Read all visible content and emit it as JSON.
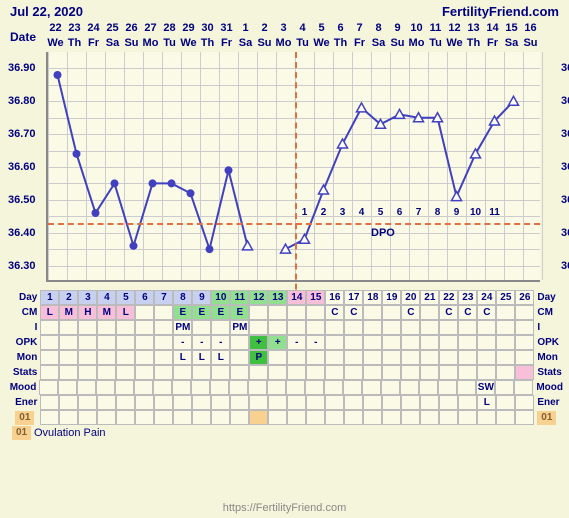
{
  "header": {
    "date": "Jul 22, 2020",
    "site": "FertilityFriend.com"
  },
  "footer": "https://FertilityFriend.com",
  "date_label": "Date",
  "chart": {
    "dates": [
      22,
      23,
      24,
      25,
      26,
      27,
      28,
      29,
      30,
      31,
      1,
      2,
      3,
      4,
      5,
      6,
      7,
      8,
      9,
      10,
      11,
      12,
      13,
      14,
      15,
      16
    ],
    "dow": [
      "We",
      "Th",
      "Fr",
      "Sa",
      "Su",
      "Mo",
      "Tu",
      "We",
      "Th",
      "Fr",
      "Sa",
      "Su",
      "Mo",
      "Tu",
      "We",
      "Th",
      "Fr",
      "Sa",
      "Su",
      "Mo",
      "Tu",
      "We",
      "Th",
      "Fr",
      "Sa",
      "Su"
    ],
    "ymin": 36.25,
    "ymax": 36.95,
    "yticks": [
      36.3,
      36.4,
      36.5,
      36.6,
      36.7,
      36.8,
      36.9
    ],
    "fine_yticks": [
      36.3,
      36.35,
      36.4,
      36.45,
      36.5,
      36.55,
      36.6,
      36.65,
      36.7,
      36.75,
      36.8,
      36.85,
      36.9
    ],
    "coverline": 36.43,
    "ov_day_index": 12,
    "temps": [
      36.88,
      36.64,
      36.46,
      36.55,
      36.36,
      36.55,
      36.55,
      36.52,
      36.35,
      36.59,
      36.36,
      null,
      36.35,
      36.38,
      36.53,
      36.67,
      36.78,
      36.73,
      36.76,
      36.75,
      36.75,
      36.51,
      36.64,
      36.74,
      36.8,
      null
    ],
    "marker_solid_until": 9,
    "dpo_label": "DPO",
    "dpo_nums": [
      1,
      2,
      3,
      4,
      5,
      6,
      7,
      8,
      9,
      10,
      11
    ],
    "line_color": "#4040c0",
    "grid_color": "#cccccc"
  },
  "rows": {
    "Day": {
      "cells": [
        "1",
        "2",
        "3",
        "4",
        "5",
        "6",
        "7",
        "8",
        "9",
        "10",
        "11",
        "12",
        "13",
        "14",
        "15",
        "16",
        "17",
        "18",
        "19",
        "20",
        "21",
        "22",
        "23",
        "24",
        "25",
        "26"
      ],
      "bg": [
        "blue",
        "blue",
        "blue",
        "blue",
        "blue",
        "blue",
        "blue",
        "blue",
        "blue",
        "green",
        "green",
        "green",
        "green",
        "pink",
        "pink",
        "",
        "",
        "",
        "",
        "",
        "",
        "",
        "",
        "",
        "",
        ""
      ]
    },
    "CM": {
      "cells": [
        "L",
        "M",
        "H",
        "M",
        "L",
        "",
        "",
        "E",
        "E",
        "E",
        "E",
        "",
        "",
        "",
        "",
        "C",
        "C",
        "",
        "",
        "C",
        "",
        "C",
        "C",
        "C",
        "",
        ""
      ],
      "bg": [
        "pink",
        "pink",
        "pink",
        "pink",
        "pink",
        "",
        "",
        "green",
        "green",
        "green",
        "green",
        "",
        "",
        "",
        "",
        "",
        "",
        "",
        "",
        "",
        "",
        "",
        "",
        "",
        "",
        ""
      ]
    },
    "I": {
      "cells": [
        "",
        "",
        "",
        "",
        "",
        "",
        "",
        "PM",
        "",
        "",
        "PM",
        "",
        "",
        "",
        "",
        "",
        "",
        "",
        "",
        "",
        "",
        "",
        "",
        "",
        "",
        ""
      ]
    },
    "OPK": {
      "cells": [
        "",
        "",
        "",
        "",
        "",
        "",
        "",
        "-",
        "-",
        "-",
        "",
        "+",
        "+",
        "-",
        "-",
        "",
        "",
        "",
        "",
        "",
        "",
        "",
        "",
        "",
        "",
        ""
      ],
      "bg": [
        "",
        "",
        "",
        "",
        "",
        "",
        "",
        "",
        "",
        "",
        "",
        "dgreen",
        "green",
        "",
        "",
        "",
        "",
        "",
        "",
        "",
        "",
        "",
        "",
        "",
        "",
        ""
      ]
    },
    "Mon": {
      "cells": [
        "",
        "",
        "",
        "",
        "",
        "",
        "",
        "L",
        "L",
        "L",
        "",
        "P",
        "",
        "",
        "",
        "",
        "",
        "",
        "",
        "",
        "",
        "",
        "",
        "",
        "",
        ""
      ],
      "bg": [
        "",
        "",
        "",
        "",
        "",
        "",
        "",
        "",
        "",
        "",
        "",
        "dgreen",
        "",
        "",
        "",
        "",
        "",
        "",
        "",
        "",
        "",
        "",
        "",
        "",
        "",
        ""
      ]
    },
    "Stats": {
      "cells": [
        "",
        "",
        "",
        "",
        "",
        "",
        "",
        "",
        "",
        "",
        "",
        "",
        "",
        "",
        "",
        "",
        "",
        "",
        "",
        "",
        "",
        "",
        "",
        "",
        "",
        ""
      ],
      "bg": [
        "",
        "",
        "",
        "",
        "",
        "",
        "",
        "",
        "",
        "",
        "",
        "",
        "",
        "",
        "",
        "",
        "",
        "",
        "",
        "",
        "",
        "",
        "",
        "",
        "",
        "pink"
      ]
    },
    "Mood": {
      "cells": [
        "",
        "",
        "",
        "",
        "",
        "",
        "",
        "",
        "",
        "",
        "",
        "",
        "",
        "",
        "",
        "",
        "",
        "",
        "",
        "",
        "",
        "",
        "",
        "SW",
        "",
        ""
      ]
    },
    "Ener": {
      "cells": [
        "",
        "",
        "",
        "",
        "",
        "",
        "",
        "",
        "",
        "",
        "",
        "",
        "",
        "",
        "",
        "",
        "",
        "",
        "",
        "",
        "",
        "",
        "",
        "L",
        "",
        ""
      ]
    }
  },
  "note01": {
    "badge": "01",
    "text": "Ovulation Pain",
    "hl_col": 11
  }
}
